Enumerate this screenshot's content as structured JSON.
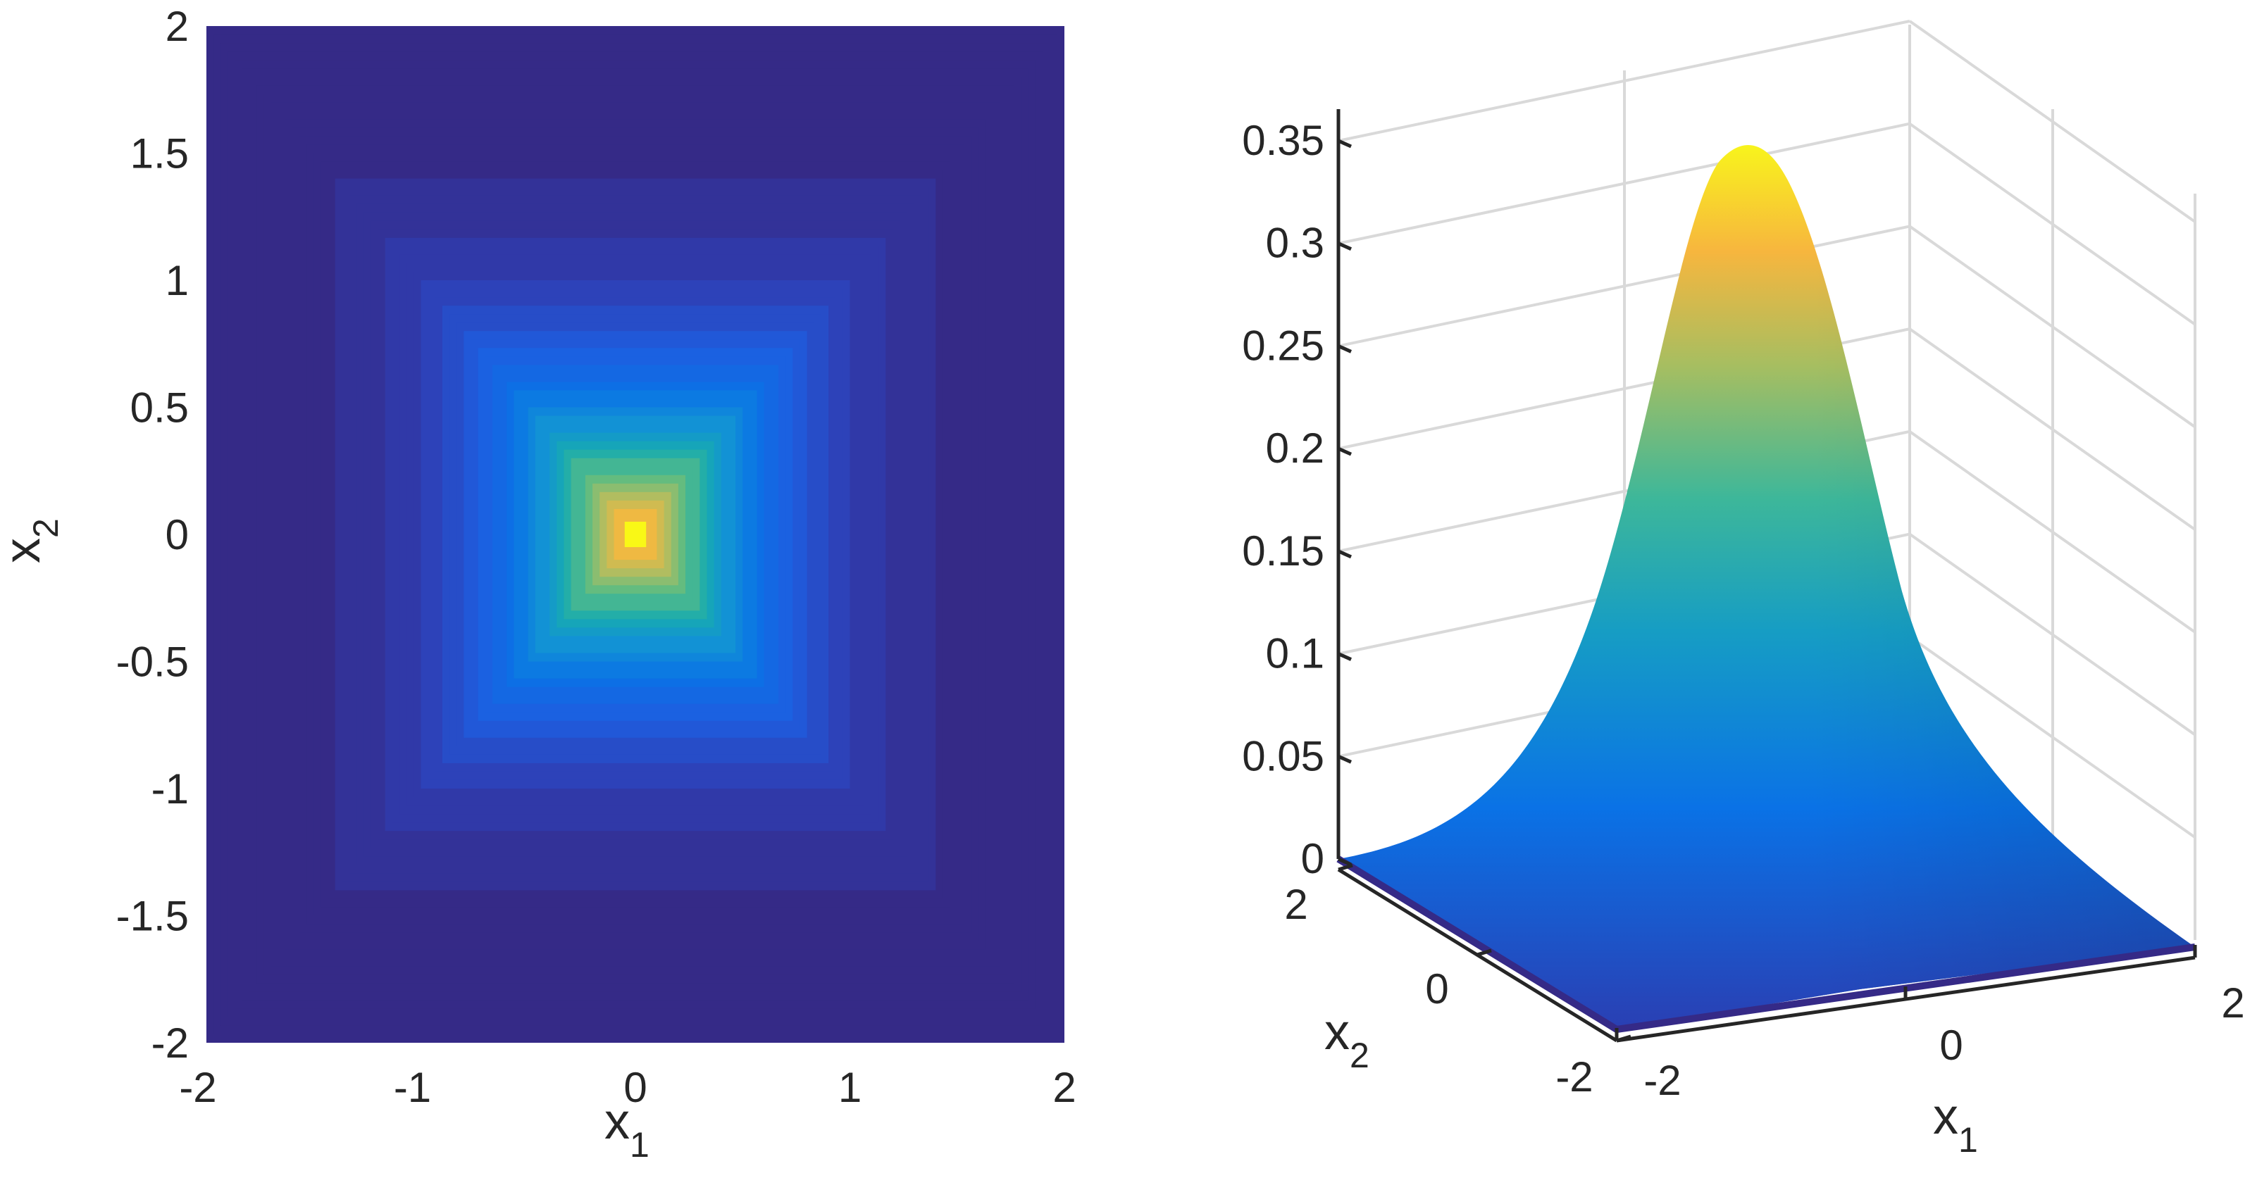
{
  "chart_data": [
    {
      "type": "heatmap",
      "view": "2d",
      "xlim": [
        -2,
        2
      ],
      "ylim": [
        -2,
        2
      ],
      "xticks": [
        "-2",
        "-1",
        "0",
        "1",
        "2"
      ],
      "yticks": [
        "2",
        "1.5",
        "1",
        "0.5",
        "0",
        "-0.5",
        "-1",
        "-1.5",
        "-2"
      ],
      "xlabel": "x",
      "xlabel_sub": "1",
      "ylabel": "x",
      "ylabel_sub": "2",
      "colormap": "parula",
      "levels": [
        0.0,
        0.02,
        0.05,
        0.08,
        0.12,
        0.17,
        0.22,
        0.28,
        0.33,
        0.35
      ],
      "function": "peak at (0,0) with square (max-norm) level sets",
      "peak_value": 0.35,
      "colors": [
        "#352a87",
        "#2f3eb3",
        "#1e5ee0",
        "#0a72e6",
        "#1292d5",
        "#17abb0",
        "#5ebc82",
        "#b3bd5f",
        "#f6b93e",
        "#f9f816"
      ]
    },
    {
      "type": "surface",
      "view": "3d",
      "zlim": [
        0,
        0.35
      ],
      "zticks": [
        "0",
        "0.05",
        "0.1",
        "0.15",
        "0.2",
        "0.25",
        "0.3",
        "0.35"
      ],
      "xticks": [
        "-2",
        "0",
        "2"
      ],
      "yticks": [
        "2",
        "0",
        "-2"
      ],
      "xlabel": "x",
      "xlabel_sub": "1",
      "ylabel": "x",
      "ylabel_sub": "2",
      "peak": {
        "x1": 0,
        "x2": 0,
        "z": 0.35
      },
      "grid": true
    }
  ]
}
